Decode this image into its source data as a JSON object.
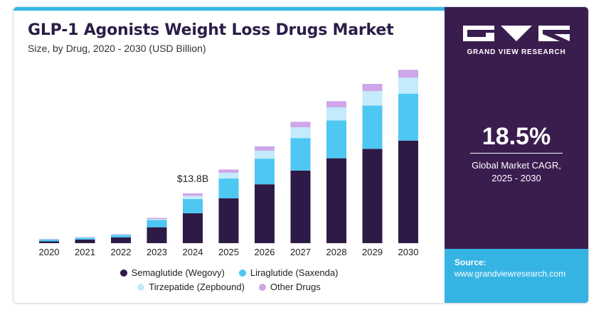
{
  "header": {
    "title": "GLP-1 Agonists Weight Loss Drugs Market",
    "subtitle": "Size, by Drug, 2020 - 2030 (USD Billion)"
  },
  "sidebar": {
    "brand": "GRAND VIEW RESEARCH",
    "cagr_value": "18.5%",
    "cagr_label_line1": "Global Market CAGR,",
    "cagr_label_line2": "2025 - 2030",
    "source_label": "Source:",
    "source_url": "www.grandviewresearch.com"
  },
  "colors": {
    "title": "#2b1d47",
    "top_bar": "#37b7e8",
    "sidebar_bg": "#3a1d4f",
    "sidebar_bottom": "#35b4e4",
    "semaglutide": "#2e1a47",
    "liraglutide": "#4ec7f2",
    "tirzepatide": "#c4ebfb",
    "other": "#cfa6e8"
  },
  "chart_data": {
    "type": "bar",
    "stacked": true,
    "categories": [
      "2020",
      "2021",
      "2022",
      "2023",
      "2024",
      "2025",
      "2026",
      "2027",
      "2028",
      "2029",
      "2030"
    ],
    "series": [
      {
        "name": "Semaglutide (Wegovy)",
        "color": "#2e1a47",
        "values": [
          0.5,
          1.0,
          1.6,
          4.4,
          8.3,
          12.4,
          16.3,
          20.1,
          23.5,
          26.1,
          28.4
        ]
      },
      {
        "name": "Liraglutide (Saxenda)",
        "color": "#4ec7f2",
        "values": [
          0.5,
          0.5,
          0.7,
          2.0,
          3.9,
          5.5,
          7.1,
          9.0,
          10.5,
          12.0,
          13.0
        ]
      },
      {
        "name": "Tirzepatide (Zepbound)",
        "color": "#c4ebfb",
        "values": [
          0.1,
          0.1,
          0.1,
          0.3,
          0.9,
          1.6,
          2.2,
          3.0,
          3.6,
          4.0,
          4.4
        ]
      },
      {
        "name": "Other Drugs",
        "color": "#cfa6e8",
        "values": [
          0.1,
          0.1,
          0.1,
          0.3,
          0.7,
          0.9,
          1.2,
          1.5,
          1.7,
          2.0,
          2.2
        ]
      }
    ],
    "annotations": [
      {
        "category": "2024",
        "text": "$13.8B"
      }
    ],
    "ylim": [
      0,
      50
    ],
    "grid": false,
    "legend_position": "bottom"
  }
}
